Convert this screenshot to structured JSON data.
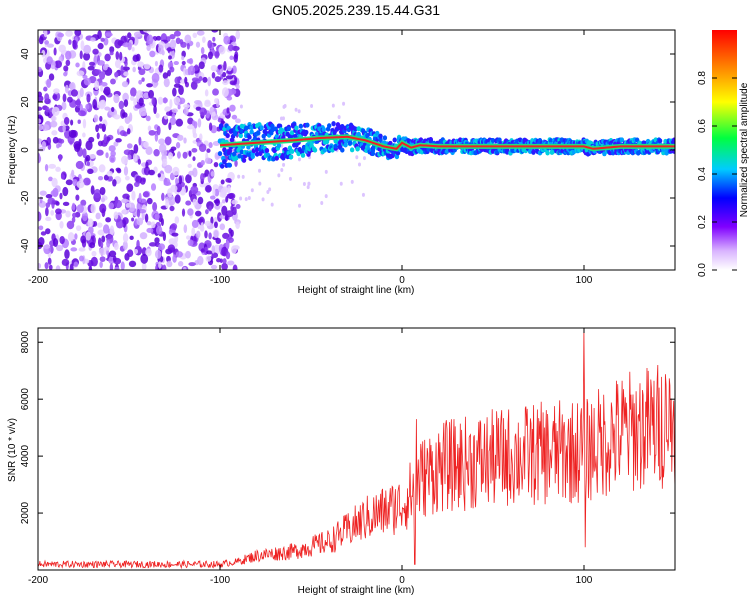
{
  "title": "GN05.2025.239.15.44.G31",
  "colors": {
    "snr_line": "#ee2222",
    "spectrogram_points": "#6a0fe0",
    "ridge_core": "#ee2222",
    "ridge_edge": "#20e080"
  },
  "chart_data": [
    {
      "type": "heatmap",
      "title": "GN05.2025.239.15.44.G31",
      "xlabel": "Height of straight line (km)",
      "ylabel": "Frequency (Hz)",
      "xlim": [
        -200,
        150
      ],
      "ylim": [
        -50,
        50
      ],
      "xticks": [
        -200,
        -100,
        0,
        100
      ],
      "yticks": [
        -40,
        -20,
        0,
        20,
        40
      ],
      "colorbar": {
        "label": "Normalized spectral amplitude",
        "range": [
          0,
          1
        ],
        "ticks": [
          "0.0",
          "0.2",
          "0.4",
          "0.6",
          "0.8"
        ],
        "colormap": "rainbow (white-purple-blue-cyan-green-yellow-red)"
      },
      "ridge_frequency_hz": [
        {
          "x": -100,
          "y": 2
        },
        {
          "x": -80,
          "y": 3
        },
        {
          "x": -60,
          "y": 4
        },
        {
          "x": -45,
          "y": 5
        },
        {
          "x": -30,
          "y": 5.5
        },
        {
          "x": -20,
          "y": 4
        },
        {
          "x": -10,
          "y": 1.5
        },
        {
          "x": -3,
          "y": 0.5
        },
        {
          "x": 0,
          "y": 3
        },
        {
          "x": 5,
          "y": 1
        },
        {
          "x": 10,
          "y": 2
        },
        {
          "x": 20,
          "y": 1.5
        },
        {
          "x": 40,
          "y": 1.5
        },
        {
          "x": 60,
          "y": 1.5
        },
        {
          "x": 80,
          "y": 1.5
        },
        {
          "x": 100,
          "y": 1.5
        },
        {
          "x": 105,
          "y": 0.5
        },
        {
          "x": 120,
          "y": 1.5
        },
        {
          "x": 150,
          "y": 1.5
        }
      ],
      "noise_region_x": [
        -200,
        -90
      ],
      "grid": false
    },
    {
      "type": "line",
      "xlabel": "Height of straight line (km)",
      "ylabel": "SNR (10 * v/v)",
      "xlim": [
        -200,
        150
      ],
      "ylim": [
        0,
        8500
      ],
      "xticks": [
        -200,
        -100,
        0,
        100
      ],
      "yticks": [
        2000,
        4000,
        6000,
        8000
      ],
      "series": [
        {
          "envelope": [
            {
              "x": -200,
              "y": 200
            },
            {
              "x": -150,
              "y": 200
            },
            {
              "x": -100,
              "y": 200
            },
            {
              "x": -90,
              "y": 300
            },
            {
              "x": -80,
              "y": 500
            },
            {
              "x": -60,
              "y": 650
            },
            {
              "x": -40,
              "y": 1000
            },
            {
              "x": -20,
              "y": 1800
            },
            {
              "x": 0,
              "y": 2300
            },
            {
              "x": 5,
              "y": 2700
            },
            {
              "x": 10,
              "y": 3200
            },
            {
              "x": 20,
              "y": 3600
            },
            {
              "x": 40,
              "y": 3800
            },
            {
              "x": 60,
              "y": 4000
            },
            {
              "x": 80,
              "y": 4100
            },
            {
              "x": 100,
              "y": 4200
            },
            {
              "x": 120,
              "y": 4800
            },
            {
              "x": 150,
              "y": 5200
            }
          ],
          "spikes": [
            {
              "x": 100,
              "y": 8500
            },
            {
              "x": 100.5,
              "y": 800
            },
            {
              "x": 8,
              "y": 5300
            },
            {
              "x": 7,
              "y": 200
            },
            {
              "x": 145,
              "y": 6500
            }
          ]
        }
      ],
      "grid": false
    }
  ]
}
